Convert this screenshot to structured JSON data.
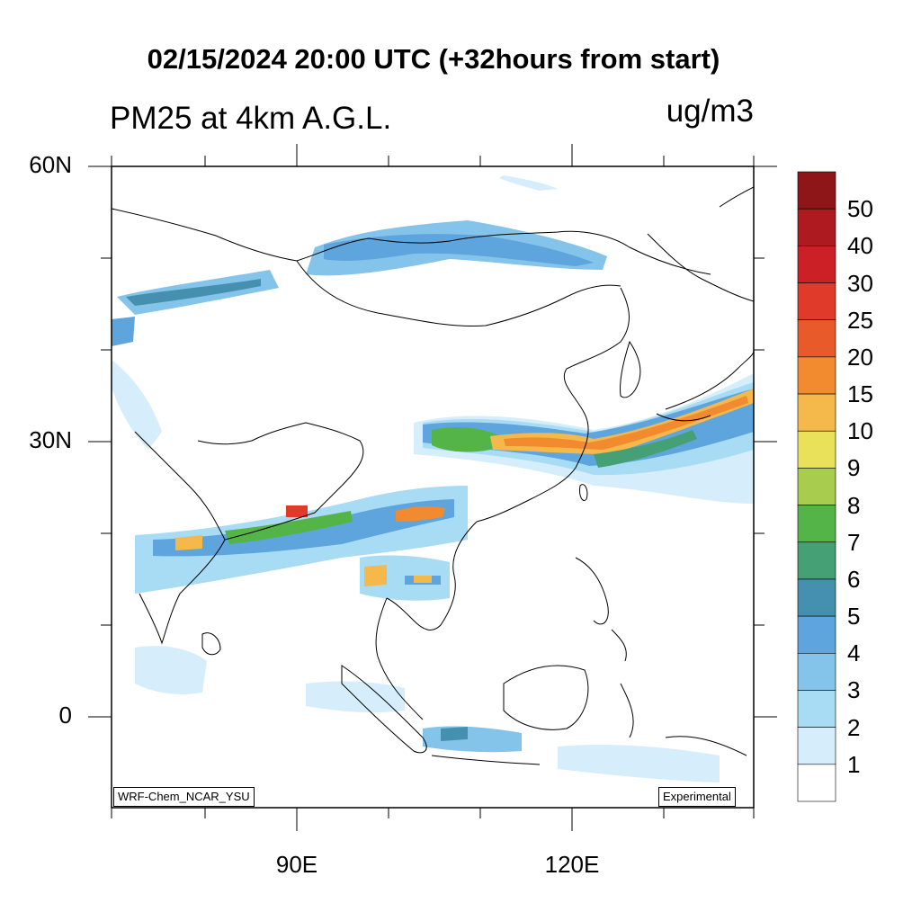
{
  "header": {
    "title": "02/15/2024 20:00 UTC (+32hours from start)",
    "subtitle": "PM25 at 4km A.G.L.",
    "units": "ug/m3"
  },
  "map": {
    "lat_labels": [
      "60N",
      "30N",
      "0"
    ],
    "lon_labels": [
      "90E",
      "120E"
    ],
    "extent": {
      "lon_min": 70,
      "lon_max": 140,
      "lat_min": -10,
      "lat_max": 60
    },
    "model_label": "WRF-Chem_NCAR_YSU",
    "status_label": "Experimental"
  },
  "legend": {
    "levels": [
      "50",
      "40",
      "30",
      "25",
      "20",
      "15",
      "10",
      "9",
      "8",
      "7",
      "6",
      "5",
      "4",
      "3",
      "2",
      "1"
    ],
    "colors": [
      "#8e1619",
      "#ad1a20",
      "#cc2027",
      "#e03b2a",
      "#e85a2a",
      "#f28a30",
      "#f5b84a",
      "#e9e15a",
      "#a8cc4e",
      "#55b447",
      "#46a076",
      "#4490ae",
      "#5ea5dd",
      "#84c4ea",
      "#a8dcf5",
      "#d6eefc",
      "#ffffff"
    ]
  }
}
